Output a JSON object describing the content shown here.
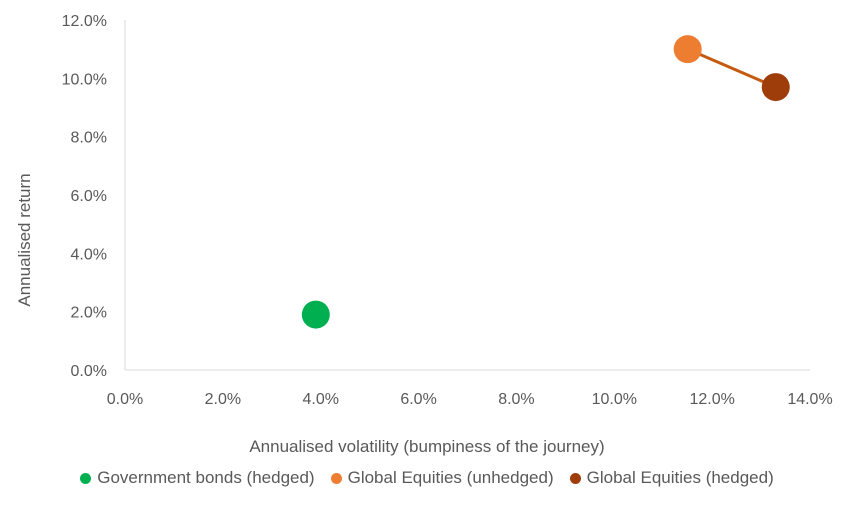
{
  "chart_data": {
    "type": "scatter",
    "title": "",
    "xlabel": "Annualised volatility (bumpiness of the journey)",
    "ylabel": "Annualised return",
    "xlim": [
      0,
      14
    ],
    "ylim": [
      0,
      12
    ],
    "x_ticks": [
      "0.0%",
      "2.0%",
      "4.0%",
      "6.0%",
      "8.0%",
      "10.0%",
      "12.0%",
      "14.0%"
    ],
    "y_ticks": [
      "0.0%",
      "2.0%",
      "4.0%",
      "6.0%",
      "8.0%",
      "10.0%",
      "12.0%"
    ],
    "grid": false,
    "legend_position": "bottom",
    "series": [
      {
        "name": "Government bonds (hedged)",
        "color": "#00b050",
        "x": 3.9,
        "y": 1.9
      },
      {
        "name": "Global Equities (unhedged)",
        "color": "#ed7d31",
        "x": 11.5,
        "y": 11.0
      },
      {
        "name": "Global Equities (hedged)",
        "color": "#9e3d0a",
        "x": 13.3,
        "y": 9.7
      }
    ],
    "connector": {
      "from": "Global Equities (unhedged)",
      "to": "Global Equities (hedged)",
      "color": "#c55a11"
    }
  }
}
